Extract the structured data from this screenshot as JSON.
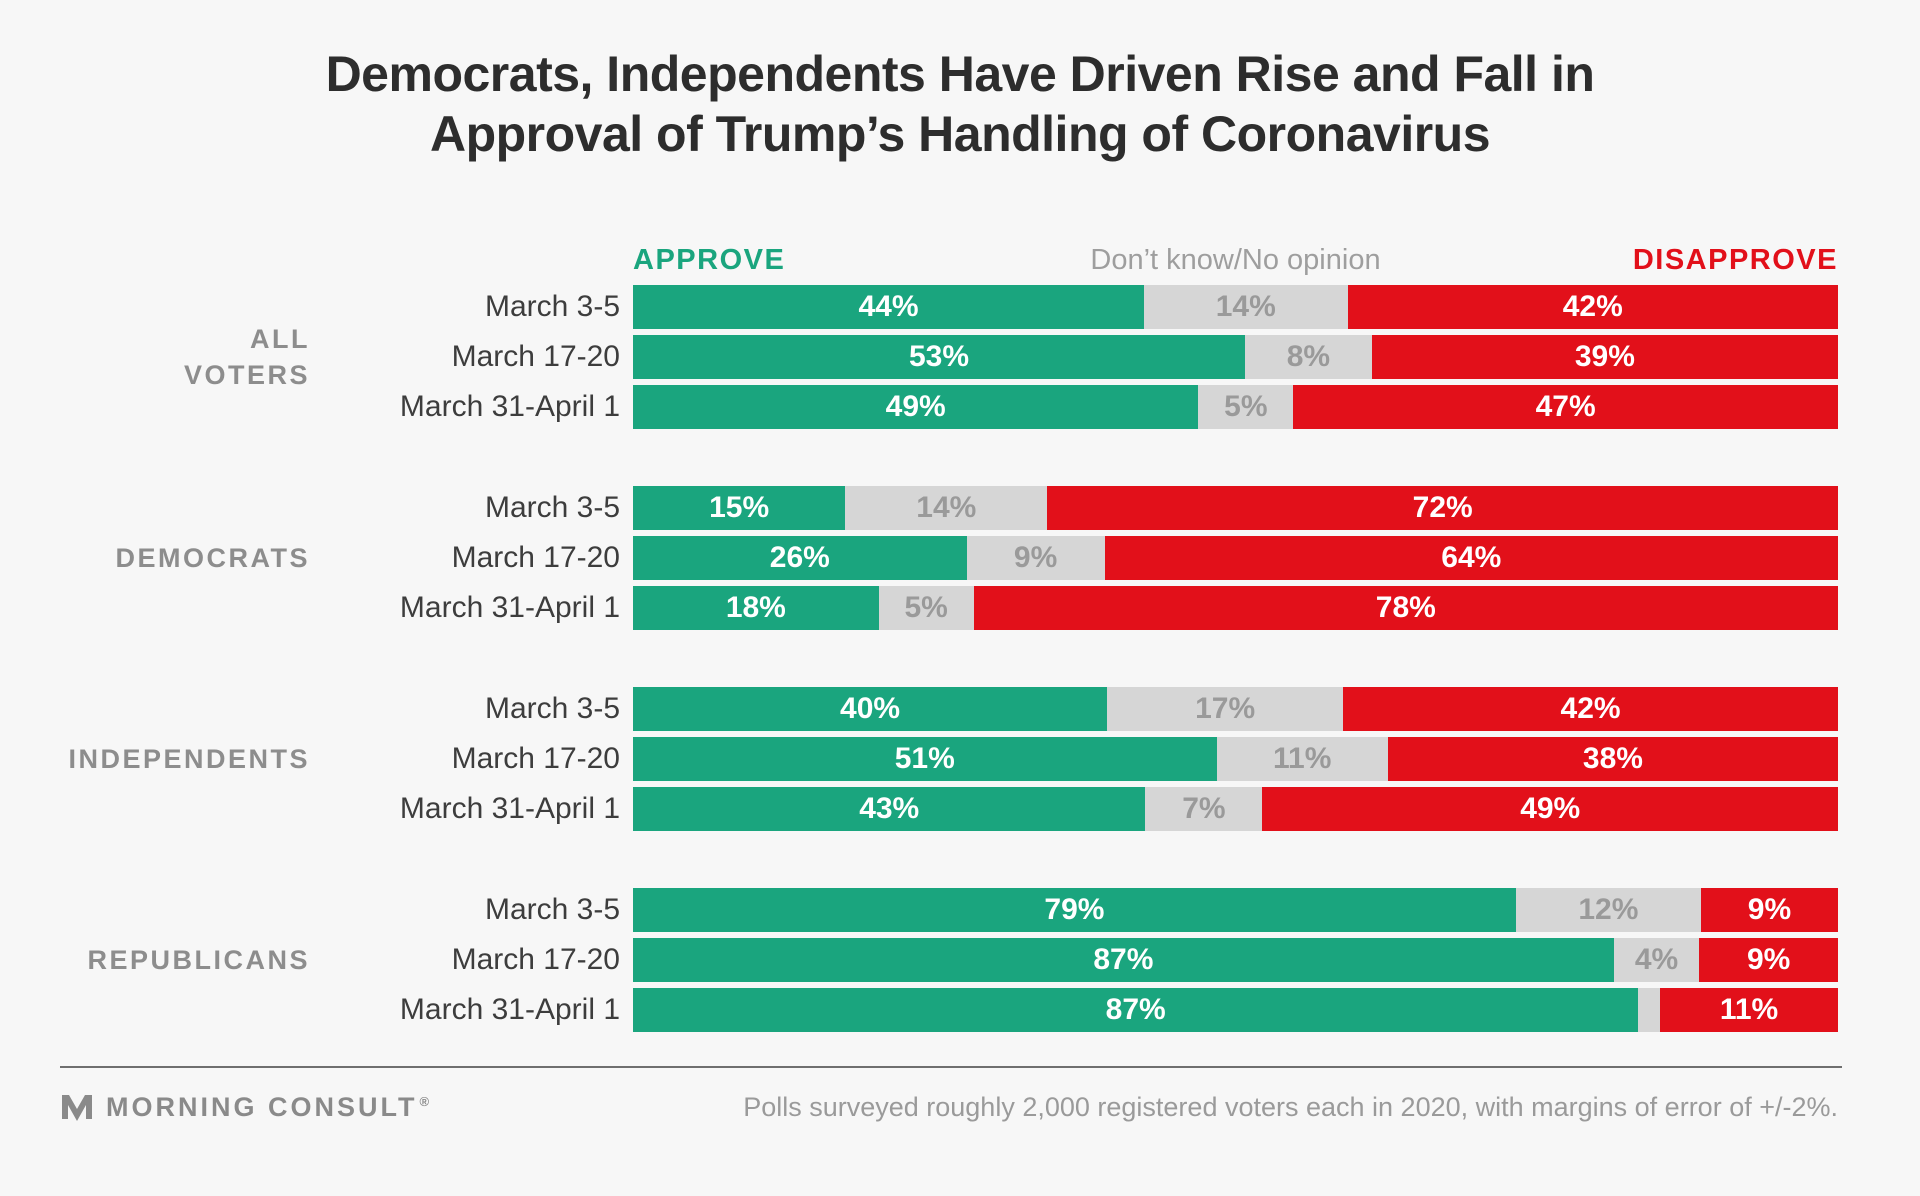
{
  "title": {
    "line1": "Democrats, Independents Have Driven Rise and Fall in",
    "line2": "Approval of Trump’s Handling of Coronavirus"
  },
  "legend": {
    "approve": "APPROVE",
    "dk": "Don’t know/No opinion",
    "disapprove": "DISAPPROVE"
  },
  "colors": {
    "approve": "#1aa57e",
    "dk": "#d6d6d6",
    "disapprove": "#e2101a",
    "dk_label_text": "#9a9a9a",
    "bar_label_text": "#ffffff",
    "background": "#f7f7f7"
  },
  "chart_data": {
    "type": "bar",
    "orientation": "horizontal",
    "stacked": true,
    "unit": "percent",
    "title": "Democrats, Independents Have Driven Rise and Fall in Approval of Trump’s Handling of Coronavirus",
    "series": [
      "Approve",
      "Don’t know/No opinion",
      "Disapprove"
    ],
    "series_colors": [
      "#1aa57e",
      "#d6d6d6",
      "#e2101a"
    ],
    "xlim": [
      0,
      100
    ],
    "grid": false,
    "legend_position": "top",
    "groups": [
      {
        "label": "ALL\nVOTERS",
        "rows": [
          {
            "date": "March 3-5",
            "approve": 44,
            "dk": 14,
            "disapprove": 42,
            "labels": [
              "44%",
              "14%",
              "42%"
            ]
          },
          {
            "date": "March 17-20",
            "approve": 53,
            "dk": 8,
            "disapprove": 39,
            "labels": [
              "53%",
              "8%",
              "39%"
            ]
          },
          {
            "date": "March 31-April 1",
            "approve": 49,
            "dk": 5,
            "disapprove": 47,
            "labels": [
              "49%",
              "5%",
              "47%"
            ]
          }
        ]
      },
      {
        "label": "DEMOCRATS",
        "rows": [
          {
            "date": "March 3-5",
            "approve": 15,
            "dk": 14,
            "disapprove": 72,
            "labels": [
              "15%",
              "14%",
              "72%"
            ]
          },
          {
            "date": "March 17-20",
            "approve": 26,
            "dk": 9,
            "disapprove": 64,
            "labels": [
              "26%",
              "9%",
              "64%"
            ]
          },
          {
            "date": "March 31-April 1",
            "approve": 18,
            "dk": 5,
            "disapprove": 78,
            "labels": [
              "18%",
              "5%",
              "78%"
            ]
          }
        ]
      },
      {
        "label": "INDEPENDENTS",
        "rows": [
          {
            "date": "March 3-5",
            "approve": 40,
            "dk": 17,
            "disapprove": 42,
            "labels": [
              "40%",
              "17%",
              "42%"
            ]
          },
          {
            "date": "March 17-20",
            "approve": 51,
            "dk": 11,
            "disapprove": 38,
            "labels": [
              "51%",
              "11%",
              "38%"
            ]
          },
          {
            "date": "March 31-April 1",
            "approve": 43,
            "dk": 7,
            "disapprove": 49,
            "labels": [
              "43%",
              "7%",
              "49%"
            ]
          }
        ]
      },
      {
        "label": "REPUBLICANS",
        "rows": [
          {
            "date": "March 3-5",
            "approve": 79,
            "dk": 12,
            "disapprove": 9,
            "labels": [
              "79%",
              "12%",
              "9%"
            ]
          },
          {
            "date": "March 17-20",
            "approve": 87,
            "dk": 4,
            "disapprove": 9,
            "labels": [
              "87%",
              "4%",
              "9%"
            ]
          },
          {
            "date": "March 31-April 1",
            "approve": 87,
            "dk": 2,
            "disapprove": 11,
            "labels": [
              "87%",
              "",
              "11%"
            ]
          }
        ]
      }
    ]
  },
  "footer": {
    "logo_text": "MORNING CONSULT",
    "reg": "®",
    "note": "Polls surveyed roughly 2,000 registered voters each in 2020, with margins of error of +/-2%."
  }
}
